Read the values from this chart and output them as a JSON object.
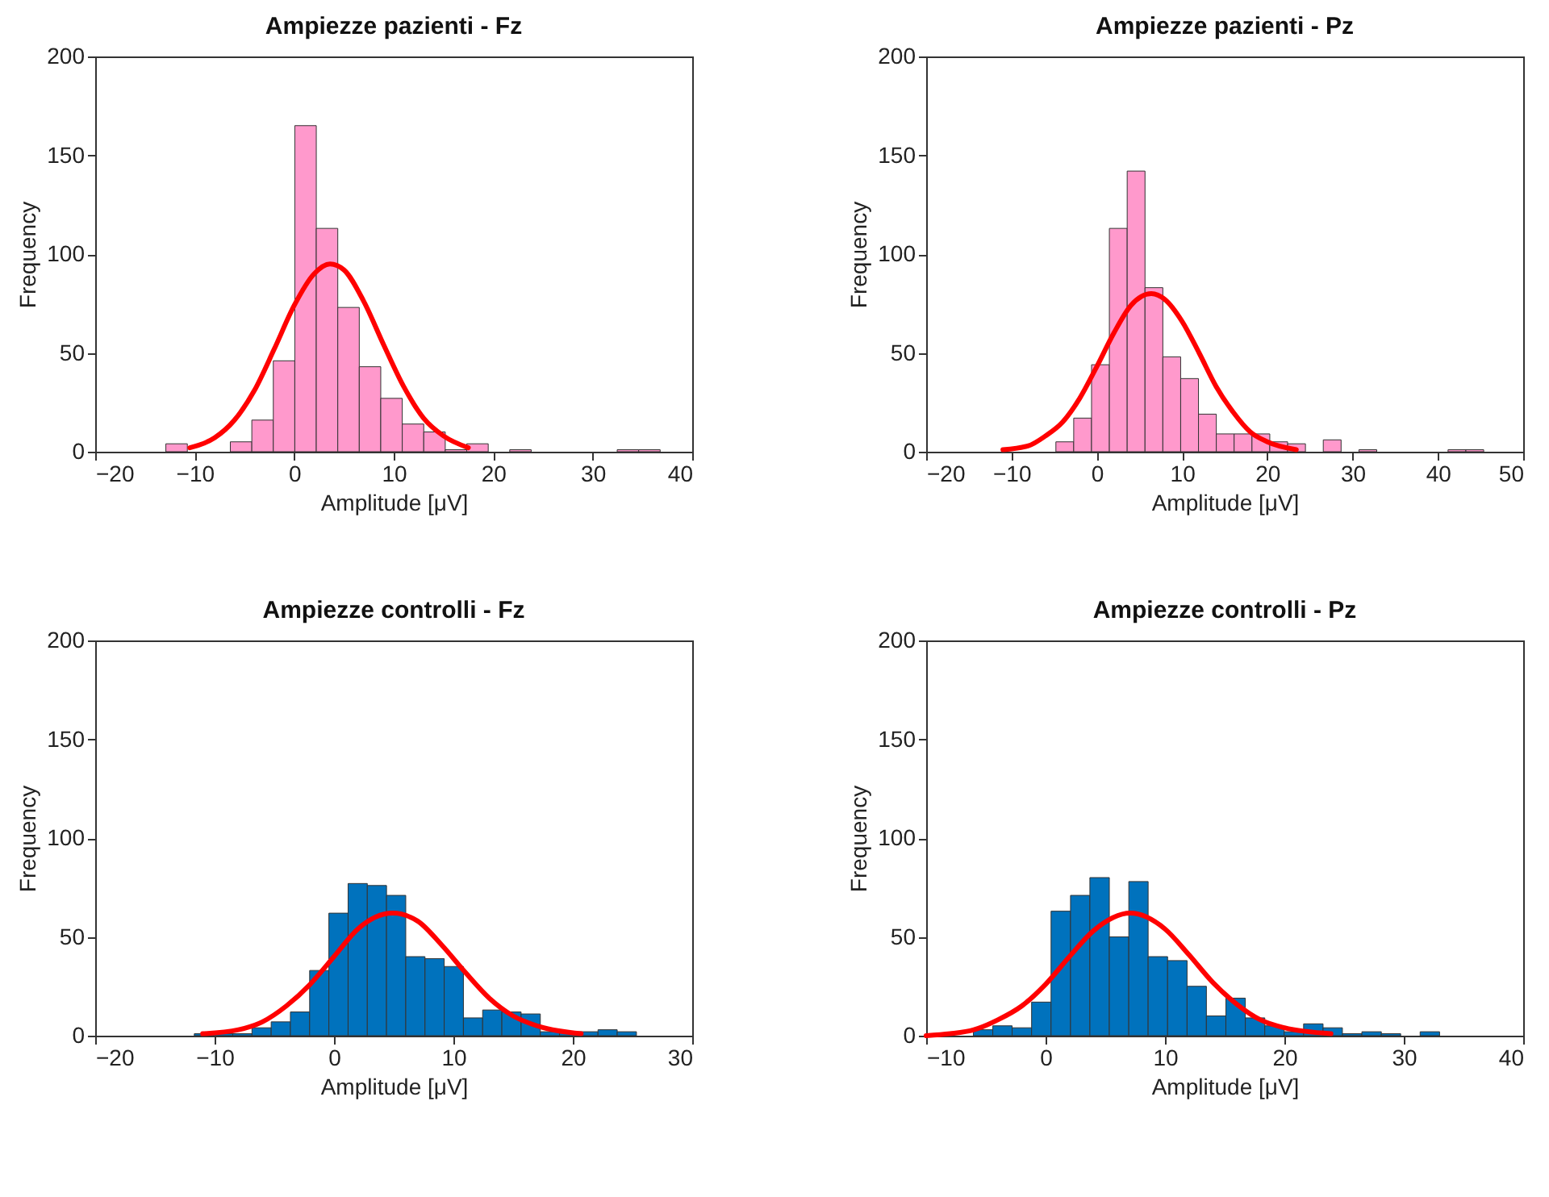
{
  "chart_data": [
    {
      "type": "histogram",
      "title": "Ampiezze pazienti -  Fz",
      "xlabel": "Amplitude [μV]",
      "ylabel": "Frequency",
      "xlim": [
        -20,
        40
      ],
      "xticks": [
        -20,
        -10,
        0,
        10,
        20,
        30,
        40
      ],
      "ylim": [
        0,
        200
      ],
      "yticks": [
        0,
        50,
        100,
        150,
        200
      ],
      "grid": false,
      "series": [
        {
          "type": "histogram",
          "color": "#ff99cc",
          "bins": [
            -12.9,
            -10.74,
            -8.58,
            -6.42,
            -4.26,
            -2.1,
            0.06,
            2.22,
            4.38,
            6.54,
            8.7,
            10.86,
            13.02,
            15.18,
            17.34,
            19.5,
            21.66,
            23.82,
            25.98,
            28.14,
            30.3,
            32.46,
            34.62,
            36.78
          ],
          "values": [
            4,
            0,
            0,
            5,
            16,
            46,
            165,
            113,
            73,
            43,
            27,
            14,
            10,
            1,
            4,
            0,
            1,
            0,
            0,
            0,
            0,
            1,
            1
          ]
        },
        {
          "type": "line",
          "color": "#ff0000",
          "x": [
            -10.5,
            -8,
            -6,
            -4,
            -2,
            0,
            2,
            3.6,
            5,
            7,
            9,
            11,
            13,
            15,
            17.5
          ],
          "values": [
            2,
            7,
            16,
            31,
            52,
            74,
            90,
            95,
            92,
            76,
            54,
            33,
            17,
            8,
            2
          ]
        }
      ]
    },
    {
      "type": "histogram",
      "title": "Ampiezze pazienti -  Pz",
      "xlabel": "Amplitude [μV]",
      "ylabel": "Frequency",
      "xlim": [
        -20,
        50
      ],
      "xticks": [
        -20,
        -10,
        0,
        10,
        20,
        30,
        40,
        50
      ],
      "ylim": [
        0,
        200
      ],
      "yticks": [
        0,
        50,
        100,
        150,
        200
      ],
      "grid": false,
      "series": [
        {
          "type": "histogram",
          "color": "#ff99cc",
          "bins": [
            -4.79,
            -2.7,
            -0.61,
            1.48,
            3.57,
            5.66,
            7.75,
            9.84,
            11.93,
            14.02,
            16.11,
            18.2,
            20.29,
            22.38,
            24.47,
            26.56,
            28.65,
            30.74,
            32.83,
            34.92,
            37.01,
            39.1,
            41.19,
            43.28,
            45.37
          ],
          "values": [
            5,
            17,
            44,
            113,
            142,
            83,
            48,
            37,
            19,
            9,
            9,
            9,
            5,
            4,
            0,
            6,
            0,
            1,
            0,
            0,
            0,
            0,
            1,
            1
          ]
        },
        {
          "type": "line",
          "color": "#ff0000",
          "x": [
            -11,
            -8,
            -6,
            -4,
            -2,
            0,
            2,
            4,
            6.4,
            8,
            10,
            12,
            14,
            16,
            18,
            20,
            23.4
          ],
          "values": [
            1,
            3,
            8,
            15,
            27,
            43,
            60,
            74,
            80,
            77,
            66,
            50,
            33,
            20,
            10,
            5,
            1
          ]
        }
      ]
    },
    {
      "type": "histogram",
      "title": "Ampiezze controlli -  Fz",
      "xlabel": "Amplitude [μV]",
      "ylabel": "Frequency",
      "xlim": [
        -20,
        30
      ],
      "xticks": [
        -20,
        -10,
        0,
        10,
        20,
        30
      ],
      "ylim": [
        0,
        200
      ],
      "yticks": [
        0,
        50,
        100,
        150,
        200
      ],
      "grid": false,
      "series": [
        {
          "type": "histogram",
          "color": "#0072bd",
          "bins": [
            -11.7,
            -10.09,
            -8.48,
            -6.87,
            -5.26,
            -3.65,
            -2.04,
            -0.43,
            1.18,
            2.79,
            4.4,
            6.01,
            7.62,
            9.23,
            10.84,
            12.45,
            14.06,
            15.67,
            17.28,
            18.89,
            20.5,
            22.11,
            23.72,
            25.33
          ],
          "values": [
            1,
            1,
            1,
            4,
            7,
            12,
            33,
            62,
            77,
            76,
            71,
            40,
            39,
            35,
            9,
            13,
            12,
            11,
            2,
            2,
            2,
            3,
            2
          ]
        },
        {
          "type": "line",
          "color": "#ff0000",
          "x": [
            -11,
            -8,
            -6,
            -4,
            -2,
            0,
            2,
            4.9,
            7,
            9,
            11,
            13,
            15,
            17,
            20.7
          ],
          "values": [
            1,
            3,
            7,
            15,
            26,
            40,
            54,
            62,
            58,
            46,
            32,
            19,
            10,
            5,
            1
          ]
        }
      ]
    },
    {
      "type": "histogram",
      "title": "Ampiezze controlli -  Pz",
      "xlabel": "Amplitude [μV]",
      "ylabel": "Frequency",
      "xlim": [
        -10,
        40
      ],
      "xticks": [
        -10,
        0,
        10,
        20,
        30,
        40
      ],
      "ylim": [
        0,
        200
      ],
      "yticks": [
        0,
        50,
        100,
        150,
        200
      ],
      "grid": false,
      "series": [
        {
          "type": "histogram",
          "color": "#0072bd",
          "bins": [
            -6.05,
            -4.42,
            -2.8,
            -1.17,
            0.46,
            2.09,
            3.71,
            5.34,
            6.97,
            8.59,
            10.22,
            11.85,
            13.47,
            15.1,
            16.73,
            18.36,
            19.98,
            21.61,
            23.24,
            24.86,
            26.49,
            28.12,
            29.74,
            31.37,
            33.0
          ],
          "values": [
            3,
            5,
            4,
            17,
            63,
            71,
            80,
            50,
            78,
            40,
            38,
            25,
            10,
            19,
            9,
            5,
            2,
            6,
            4,
            1,
            2,
            1,
            0,
            2
          ]
        },
        {
          "type": "line",
          "color": "#ff0000",
          "x": [
            -10,
            -8,
            -6,
            -4,
            -2,
            0,
            2,
            4,
            7.1,
            10,
            12,
            14,
            16,
            18,
            20,
            23.9
          ],
          "values": [
            0,
            1,
            3,
            8,
            15,
            26,
            40,
            53,
            62,
            54,
            41,
            27,
            16,
            8,
            4,
            1
          ]
        }
      ]
    }
  ]
}
